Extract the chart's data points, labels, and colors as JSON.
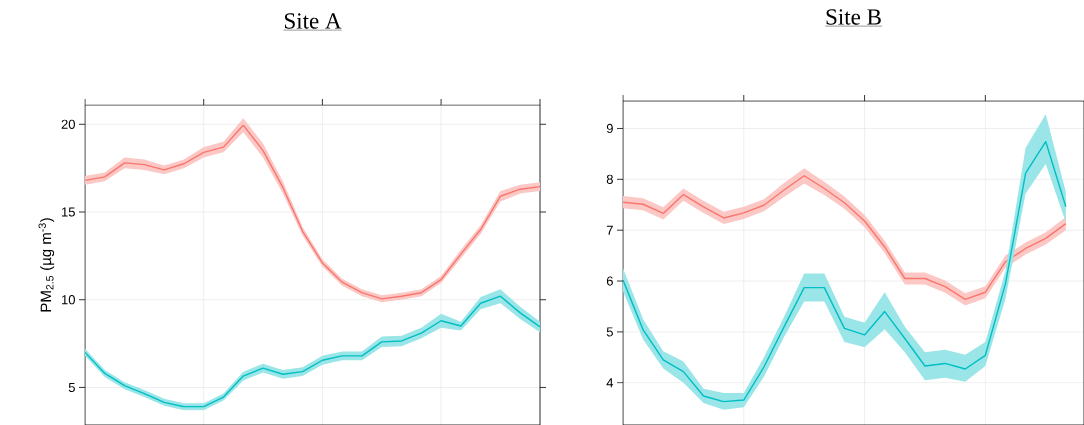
{
  "chart_data": [
    {
      "type": "line",
      "title": "Site A",
      "ylabel": "PM$_{2.5}$ (µg m$^{-3}$)",
      "categories": [
        null,
        null,
        null,
        null,
        null,
        null,
        null,
        null,
        null,
        null,
        null,
        null,
        null,
        null,
        null,
        null,
        null,
        null,
        null,
        null,
        null,
        null,
        null,
        null
      ],
      "ylim": [
        2.86,
        21.1
      ],
      "yticks": [
        5,
        10,
        15,
        20
      ],
      "grid": true,
      "series": [
        {
          "color": "#f8766d",
          "values": [
            16.8,
            17.0,
            17.8,
            17.7,
            17.4,
            17.75,
            18.4,
            18.7,
            19.95,
            18.5,
            16.4,
            13.9,
            12.1,
            11.0,
            10.4,
            10.05,
            10.2,
            10.4,
            11.15,
            12.6,
            14.0,
            15.9,
            16.3,
            16.45
          ],
          "lower": [
            16.55,
            16.75,
            17.5,
            17.4,
            17.15,
            17.5,
            18.1,
            18.4,
            19.55,
            18.1,
            16.05,
            13.65,
            11.9,
            10.8,
            10.2,
            9.85,
            10.0,
            10.2,
            10.95,
            12.35,
            13.75,
            15.6,
            16.05,
            16.2
          ],
          "upper": [
            17.05,
            17.25,
            18.1,
            18.0,
            17.65,
            18.0,
            18.7,
            19.0,
            20.35,
            18.9,
            16.75,
            14.15,
            12.3,
            11.2,
            10.6,
            10.25,
            10.4,
            10.6,
            11.35,
            12.85,
            14.25,
            16.2,
            16.55,
            16.7
          ]
        },
        {
          "color": "#00bfc4",
          "values": [
            7.0,
            5.8,
            5.1,
            4.65,
            4.15,
            3.9,
            3.9,
            4.45,
            5.65,
            6.1,
            5.75,
            5.9,
            6.55,
            6.8,
            6.8,
            7.6,
            7.65,
            8.1,
            8.8,
            8.5,
            9.8,
            10.2,
            9.25,
            8.45
          ],
          "lower": [
            6.8,
            5.6,
            4.9,
            4.45,
            3.95,
            3.7,
            3.7,
            4.25,
            5.4,
            5.85,
            5.5,
            5.65,
            6.3,
            6.55,
            6.55,
            7.3,
            7.35,
            7.8,
            8.4,
            8.25,
            9.45,
            9.8,
            8.9,
            8.15
          ],
          "upper": [
            7.2,
            6.0,
            5.3,
            4.85,
            4.35,
            4.1,
            4.1,
            4.65,
            5.9,
            6.35,
            6.0,
            6.15,
            6.8,
            7.05,
            7.05,
            7.9,
            7.95,
            8.4,
            9.2,
            8.75,
            10.15,
            10.6,
            9.6,
            8.75
          ]
        }
      ]
    },
    {
      "type": "line",
      "title": "Site B",
      "categories": [
        null,
        null,
        null,
        null,
        null,
        null,
        null,
        null,
        null,
        null,
        null,
        null,
        null,
        null,
        null,
        null,
        null,
        null,
        null,
        null,
        null,
        null,
        null
      ],
      "ylim": [
        3.17,
        9.54
      ],
      "yticks": [
        4,
        5,
        6,
        7,
        8,
        9
      ],
      "grid": true,
      "series": [
        {
          "color": "#f8766d",
          "values": [
            7.55,
            7.51,
            7.33,
            7.7,
            7.46,
            7.24,
            7.34,
            7.49,
            7.79,
            8.07,
            7.82,
            7.54,
            7.18,
            6.67,
            6.05,
            6.05,
            5.89,
            5.64,
            5.78,
            6.38,
            6.64,
            6.84,
            7.13
          ],
          "lower": [
            7.43,
            7.39,
            7.21,
            7.58,
            7.34,
            7.12,
            7.22,
            7.37,
            7.65,
            7.92,
            7.69,
            7.42,
            7.06,
            6.55,
            5.93,
            5.93,
            5.77,
            5.52,
            5.66,
            6.26,
            6.52,
            6.72,
            7.0
          ],
          "upper": [
            7.67,
            7.63,
            7.45,
            7.82,
            7.58,
            7.36,
            7.46,
            7.61,
            7.93,
            8.22,
            7.95,
            7.66,
            7.3,
            6.79,
            6.17,
            6.17,
            6.01,
            5.76,
            5.9,
            6.5,
            6.76,
            6.96,
            7.26
          ]
        },
        {
          "color": "#00bfc4",
          "values": [
            6.02,
            5.04,
            4.45,
            4.22,
            3.74,
            3.63,
            3.66,
            4.31,
            5.1,
            5.87,
            5.87,
            5.07,
            4.94,
            5.4,
            4.87,
            4.33,
            4.38,
            4.27,
            4.54,
            5.95,
            8.12,
            8.74,
            7.46
          ],
          "lower": [
            5.8,
            4.85,
            4.28,
            4.0,
            3.6,
            3.47,
            3.52,
            4.12,
            4.9,
            5.6,
            5.6,
            4.8,
            4.7,
            5.05,
            4.6,
            4.05,
            4.1,
            4.02,
            4.33,
            5.65,
            7.72,
            8.3,
            7.15
          ],
          "upper": [
            6.25,
            5.25,
            4.62,
            4.42,
            3.88,
            3.8,
            3.8,
            4.5,
            5.3,
            6.15,
            6.15,
            5.3,
            5.18,
            5.78,
            5.1,
            4.6,
            4.65,
            4.55,
            4.8,
            6.2,
            8.62,
            9.28,
            7.75
          ]
        }
      ]
    }
  ]
}
